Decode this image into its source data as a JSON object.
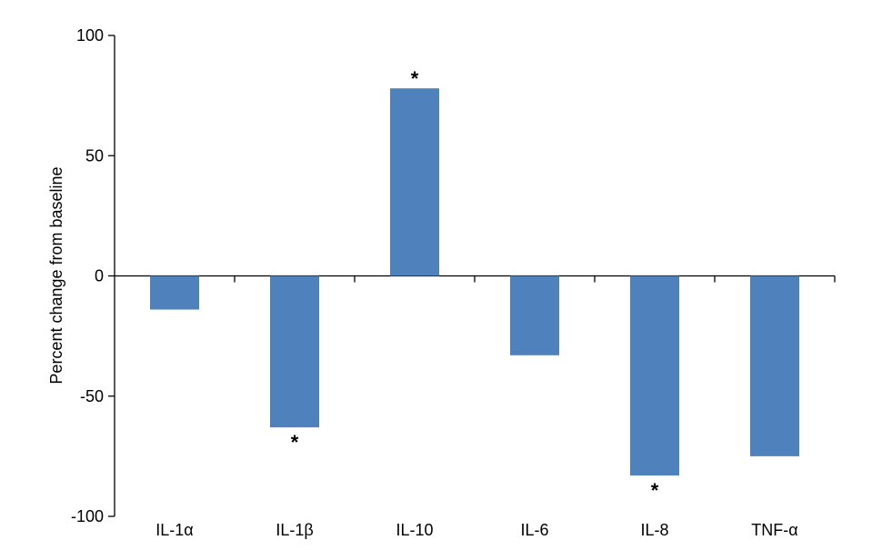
{
  "chart_data": {
    "type": "bar",
    "title": "",
    "xlabel": "",
    "ylabel": "Percent change from baseline",
    "ylim": [
      -100,
      100
    ],
    "yticks": [
      100,
      50,
      0,
      -50,
      -100
    ],
    "ytick_labels": [
      "100",
      "50",
      "0",
      "-50",
      "-100"
    ],
    "categories": [
      "IL-1α",
      "IL-1β",
      "IL-10",
      "IL-6",
      "IL-8",
      "TNF-α"
    ],
    "values": [
      -14,
      -63,
      78,
      -33,
      -83,
      -75
    ],
    "significance": [
      "",
      "*",
      "*",
      "",
      "*",
      ""
    ],
    "bar_color": "#4f81bd",
    "grid": false,
    "legend": "none"
  }
}
